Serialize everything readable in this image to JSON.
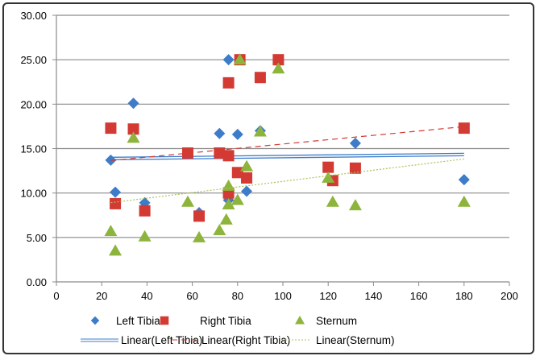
{
  "chart_data": {
    "type": "scatter",
    "xlim": [
      0,
      200
    ],
    "ylim": [
      0,
      30
    ],
    "xticks": [
      "0",
      "20",
      "40",
      "60",
      "80",
      "100",
      "120",
      "140",
      "160",
      "180",
      "200"
    ],
    "yticks": [
      "0.00",
      "5.00",
      "10.00",
      "15.00",
      "20.00",
      "25.00",
      "30.00"
    ],
    "grid": "horizontal",
    "legend_placement": "bottom",
    "series": [
      {
        "name": "Left Tibia",
        "color": "#3d7cc9",
        "marker": "diamond",
        "trendline": "Linear(Left Tibia)",
        "points": [
          [
            24,
            13.7
          ],
          [
            26,
            10.1
          ],
          [
            34,
            20.1
          ],
          [
            39,
            8.9
          ],
          [
            63,
            7.8
          ],
          [
            72,
            16.7
          ],
          [
            76,
            25
          ],
          [
            76,
            9.2
          ],
          [
            80,
            16.6
          ],
          [
            84,
            10.2
          ],
          [
            90,
            17
          ],
          [
            132,
            15.6
          ],
          [
            180,
            11.5
          ]
        ]
      },
      {
        "name": "Right Tibia",
        "color": "#d23a33",
        "marker": "square",
        "trendline": "Linear(Right Tibia)",
        "points": [
          [
            24,
            17.3
          ],
          [
            26,
            8.8
          ],
          [
            34,
            17.2
          ],
          [
            39,
            8
          ],
          [
            58,
            14.5
          ],
          [
            63,
            7.4
          ],
          [
            72,
            14.5
          ],
          [
            76,
            14.2
          ],
          [
            76,
            22.4
          ],
          [
            76,
            10
          ],
          [
            80,
            12.3
          ],
          [
            81,
            25
          ],
          [
            84,
            11.7
          ],
          [
            90,
            23
          ],
          [
            98,
            25
          ],
          [
            120,
            12.9
          ],
          [
            122,
            11.4
          ],
          [
            132,
            12.8
          ],
          [
            180,
            17.3
          ]
        ]
      },
      {
        "name": "Sternum",
        "color": "#8db43c",
        "marker": "triangle",
        "trendline": "Linear(Sternum)",
        "points": [
          [
            24,
            5.7
          ],
          [
            26,
            3.5
          ],
          [
            34,
            16.2
          ],
          [
            39,
            5.1
          ],
          [
            58,
            9
          ],
          [
            63,
            5
          ],
          [
            72,
            5.8
          ],
          [
            75,
            7
          ],
          [
            76,
            8.7
          ],
          [
            76,
            10.8
          ],
          [
            80,
            9.2
          ],
          [
            81,
            25
          ],
          [
            84,
            13
          ],
          [
            90,
            16.9
          ],
          [
            98,
            24
          ],
          [
            120,
            11.7
          ],
          [
            122,
            9
          ],
          [
            132,
            8.6
          ],
          [
            180,
            9
          ]
        ]
      }
    ]
  }
}
